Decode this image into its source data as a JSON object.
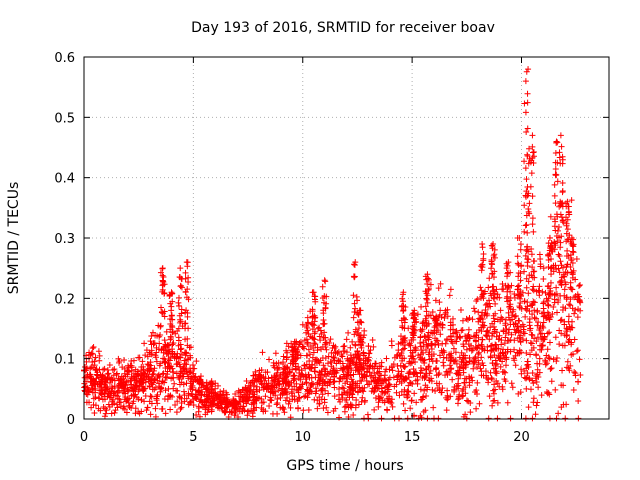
{
  "chart_data": {
    "type": "scatter",
    "title": "Day 193 of 2016, SRMTID for receiver boav",
    "xlabel": "GPS time / hours",
    "ylabel": "SRMTID / TECUs",
    "xlim": [
      0,
      24
    ],
    "ylim": [
      0,
      0.6
    ],
    "xticks": [
      0,
      5,
      10,
      15,
      20
    ],
    "xtick_labels": [
      "0",
      "5",
      "10",
      "15",
      "20"
    ],
    "yticks": [
      0,
      0.1,
      0.2,
      0.3,
      0.4,
      0.5,
      0.6
    ],
    "ytick_labels": [
      "0",
      "0.1",
      "0.2",
      "0.3",
      "0.4",
      "0.5",
      "0.6"
    ],
    "grid": true,
    "marker": "+",
    "marker_color": "#ff0000",
    "series": [
      {
        "name": "SRMTID",
        "trend": [
          [
            0.0,
            0.06
          ],
          [
            0.5,
            0.07
          ],
          [
            1.0,
            0.05
          ],
          [
            1.5,
            0.055
          ],
          [
            2.0,
            0.05
          ],
          [
            2.5,
            0.06
          ],
          [
            3.0,
            0.07
          ],
          [
            3.5,
            0.09
          ],
          [
            4.0,
            0.08
          ],
          [
            4.5,
            0.08
          ],
          [
            5.0,
            0.06
          ],
          [
            5.5,
            0.035
          ],
          [
            6.0,
            0.035
          ],
          [
            6.5,
            0.025
          ],
          [
            7.0,
            0.025
          ],
          [
            7.5,
            0.035
          ],
          [
            8.0,
            0.05
          ],
          [
            8.5,
            0.06
          ],
          [
            9.0,
            0.06
          ],
          [
            9.5,
            0.075
          ],
          [
            10.0,
            0.08
          ],
          [
            10.5,
            0.09
          ],
          [
            11.0,
            0.08
          ],
          [
            11.5,
            0.07
          ],
          [
            12.0,
            0.075
          ],
          [
            12.5,
            0.08
          ],
          [
            13.0,
            0.07
          ],
          [
            13.5,
            0.06
          ],
          [
            14.0,
            0.06
          ],
          [
            14.5,
            0.075
          ],
          [
            15.0,
            0.09
          ],
          [
            15.5,
            0.1
          ],
          [
            16.0,
            0.12
          ],
          [
            16.5,
            0.12
          ],
          [
            17.0,
            0.1
          ],
          [
            17.5,
            0.09
          ],
          [
            18.0,
            0.11
          ],
          [
            18.5,
            0.14
          ],
          [
            19.0,
            0.12
          ],
          [
            19.5,
            0.13
          ],
          [
            20.0,
            0.13
          ],
          [
            20.5,
            0.15
          ],
          [
            21.0,
            0.15
          ],
          [
            21.5,
            0.2
          ],
          [
            22.0,
            0.22
          ],
          [
            22.5,
            0.15
          ],
          [
            22.7,
            0.14
          ]
        ],
        "spikes": [
          [
            3.6,
            0.25
          ],
          [
            4.0,
            0.21
          ],
          [
            4.4,
            0.25
          ],
          [
            4.7,
            0.26
          ],
          [
            9.6,
            0.12
          ],
          [
            10.5,
            0.21
          ],
          [
            11.0,
            0.23
          ],
          [
            12.4,
            0.26
          ],
          [
            12.6,
            0.18
          ],
          [
            14.6,
            0.21
          ],
          [
            15.1,
            0.18
          ],
          [
            15.7,
            0.24
          ],
          [
            16.1,
            0.17
          ],
          [
            18.2,
            0.29
          ],
          [
            18.7,
            0.29
          ],
          [
            19.4,
            0.26
          ],
          [
            19.9,
            0.3
          ],
          [
            20.2,
            0.56
          ],
          [
            20.3,
            0.58
          ],
          [
            20.5,
            0.47
          ],
          [
            21.3,
            0.3
          ],
          [
            21.6,
            0.46
          ],
          [
            21.8,
            0.47
          ],
          [
            22.1,
            0.36
          ],
          [
            22.3,
            0.3
          ]
        ],
        "zero_markers": [
          12.8,
          13.0,
          13.6,
          14.2,
          14.4,
          14.8,
          15.3,
          15.7,
          16.0,
          16.2,
          17.5,
          18.5,
          18.9,
          19.5,
          20.2,
          20.5,
          21.3,
          21.6,
          22.0,
          22.6
        ]
      }
    ]
  }
}
